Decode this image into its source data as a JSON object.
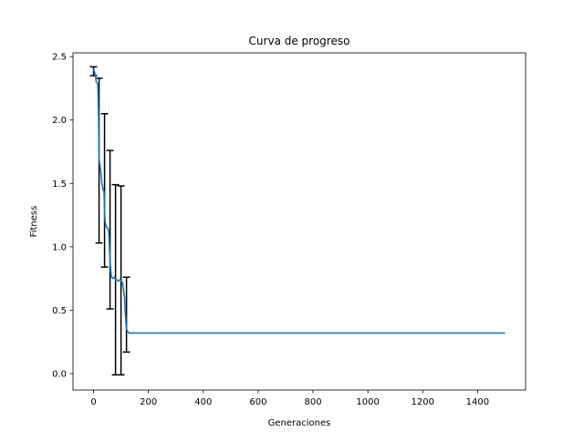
{
  "chart_data": {
    "type": "line",
    "title": "Curva de progreso",
    "xlabel": "Generaciones",
    "ylabel": "Fitness",
    "xlim": [
      -75,
      1575
    ],
    "ylim": [
      -0.13,
      2.53
    ],
    "xticks": [
      0,
      200,
      400,
      600,
      800,
      1000,
      1200,
      1400
    ],
    "yticks": [
      0.0,
      0.5,
      1.0,
      1.5,
      2.0,
      2.5
    ],
    "xtick_labels": [
      "0",
      "200",
      "400",
      "600",
      "800",
      "1000",
      "1200",
      "1400"
    ],
    "ytick_labels": [
      "0.0",
      "0.5",
      "1.0",
      "1.5",
      "2.0",
      "2.5"
    ],
    "grid": false,
    "line_color": "#1f77b4",
    "errorbar_color": "#000000",
    "series": [
      {
        "x": [
          0,
          5,
          10,
          14,
          16,
          18,
          20,
          22,
          25,
          30,
          35,
          38,
          40,
          42,
          45,
          50,
          55,
          60,
          63,
          66,
          70,
          75,
          80,
          85,
          90,
          95,
          100,
          105,
          110,
          113,
          115,
          118,
          120,
          125,
          130,
          140,
          200,
          400,
          600,
          800,
          1000,
          1200,
          1400,
          1500
        ],
        "y": [
          2.4,
          2.37,
          2.3,
          2.29,
          2.25,
          2.05,
          1.7,
          1.66,
          1.62,
          1.5,
          1.45,
          1.43,
          1.3,
          1.2,
          1.17,
          1.15,
          1.13,
          0.9,
          0.8,
          0.76,
          0.75,
          0.76,
          0.74,
          0.74,
          0.73,
          0.74,
          0.73,
          0.72,
          0.65,
          0.6,
          0.5,
          0.4,
          0.35,
          0.33,
          0.32,
          0.32,
          0.32,
          0.32,
          0.32,
          0.32,
          0.32,
          0.32,
          0.32,
          0.32
        ]
      }
    ],
    "error_bars": [
      {
        "x": 0,
        "y": 2.38,
        "lower": 2.35,
        "upper": 2.42
      },
      {
        "x": 20,
        "y": 1.68,
        "lower": 1.03,
        "upper": 2.33
      },
      {
        "x": 40,
        "y": 1.45,
        "lower": 0.84,
        "upper": 2.05
      },
      {
        "x": 60,
        "y": 1.14,
        "lower": 0.51,
        "upper": 1.76
      },
      {
        "x": 80,
        "y": 0.74,
        "lower": -0.01,
        "upper": 1.49
      },
      {
        "x": 100,
        "y": 0.73,
        "lower": -0.01,
        "upper": 1.48
      },
      {
        "x": 120,
        "y": 0.47,
        "lower": 0.17,
        "upper": 0.76
      }
    ]
  }
}
